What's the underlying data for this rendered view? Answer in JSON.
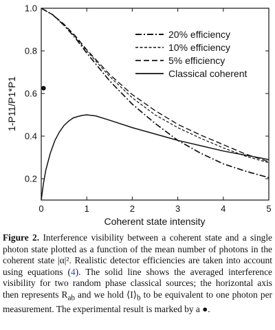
{
  "chart_data": {
    "type": "line",
    "xlabel": "Coherent state intensity",
    "ylabel": "1-P11/P1*P1",
    "xlim": [
      0,
      5
    ],
    "ylim": [
      0.1,
      1.0
    ],
    "x_ticks": [
      "0",
      "1",
      "2",
      "3",
      "4",
      "5"
    ],
    "y_ticks": [
      "0.2",
      "0.4",
      "0.6",
      "0.8",
      "1.0"
    ],
    "legend_position": "top-right",
    "grid": false,
    "series": [
      {
        "name": "20% efficiency",
        "style": "dashdot",
        "x": [
          0,
          0.25,
          0.5,
          0.75,
          1.0,
          1.5,
          2.0,
          2.5,
          3.0,
          3.5,
          4.0,
          4.5,
          5.0
        ],
        "y": [
          1.0,
          0.97,
          0.92,
          0.86,
          0.79,
          0.66,
          0.55,
          0.46,
          0.38,
          0.32,
          0.27,
          0.235,
          0.205
        ]
      },
      {
        "name": "10% efficiency",
        "style": "dotted",
        "x": [
          0,
          0.25,
          0.5,
          0.75,
          1.0,
          1.5,
          2.0,
          2.5,
          3.0,
          3.5,
          4.0,
          4.5,
          5.0
        ],
        "y": [
          1.0,
          0.97,
          0.92,
          0.865,
          0.8,
          0.68,
          0.58,
          0.5,
          0.44,
          0.39,
          0.345,
          0.305,
          0.275
        ]
      },
      {
        "name": "5% efficiency",
        "style": "dashed",
        "x": [
          0,
          0.25,
          0.5,
          0.75,
          1.0,
          1.5,
          2.0,
          2.5,
          3.0,
          3.5,
          4.0,
          4.5,
          5.0
        ],
        "y": [
          1.0,
          0.97,
          0.925,
          0.87,
          0.805,
          0.69,
          0.595,
          0.52,
          0.455,
          0.405,
          0.36,
          0.315,
          0.28
        ]
      },
      {
        "name": "Classical coherent",
        "style": "solid",
        "x": [
          0,
          0.05,
          0.1,
          0.2,
          0.3,
          0.4,
          0.5,
          0.6,
          0.7,
          0.8,
          0.9,
          1.0,
          1.2,
          1.5,
          2.0,
          2.5,
          3.0,
          3.5,
          4.0,
          4.5,
          5.0
        ],
        "y": [
          0.1,
          0.18,
          0.24,
          0.32,
          0.38,
          0.42,
          0.45,
          0.47,
          0.485,
          0.492,
          0.497,
          0.5,
          0.495,
          0.475,
          0.44,
          0.41,
          0.38,
          0.355,
          0.33,
          0.31,
          0.29
        ]
      }
    ],
    "experimental_point": {
      "x": 0.05,
      "y": 0.625
    }
  },
  "caption": {
    "label": "Figure 2.",
    "text_1": " Interference visibility between a coherent state and a single photon state plotted as a function of the mean number of photons in the coherent state |α|². Realistic detector efficiencies are taken into account using equations (",
    "ref": "4",
    "text_2": "). The solid line shows the averaged interference visibility for two random phase classical sources; the horizontal axis then represents R",
    "sub_ab": "ab",
    "text_3": " and we hold ⟨I⟩",
    "sub_b": "b",
    "text_4": " to be equivalent to one photon per measurement. The experimental result is marked by a ●."
  }
}
